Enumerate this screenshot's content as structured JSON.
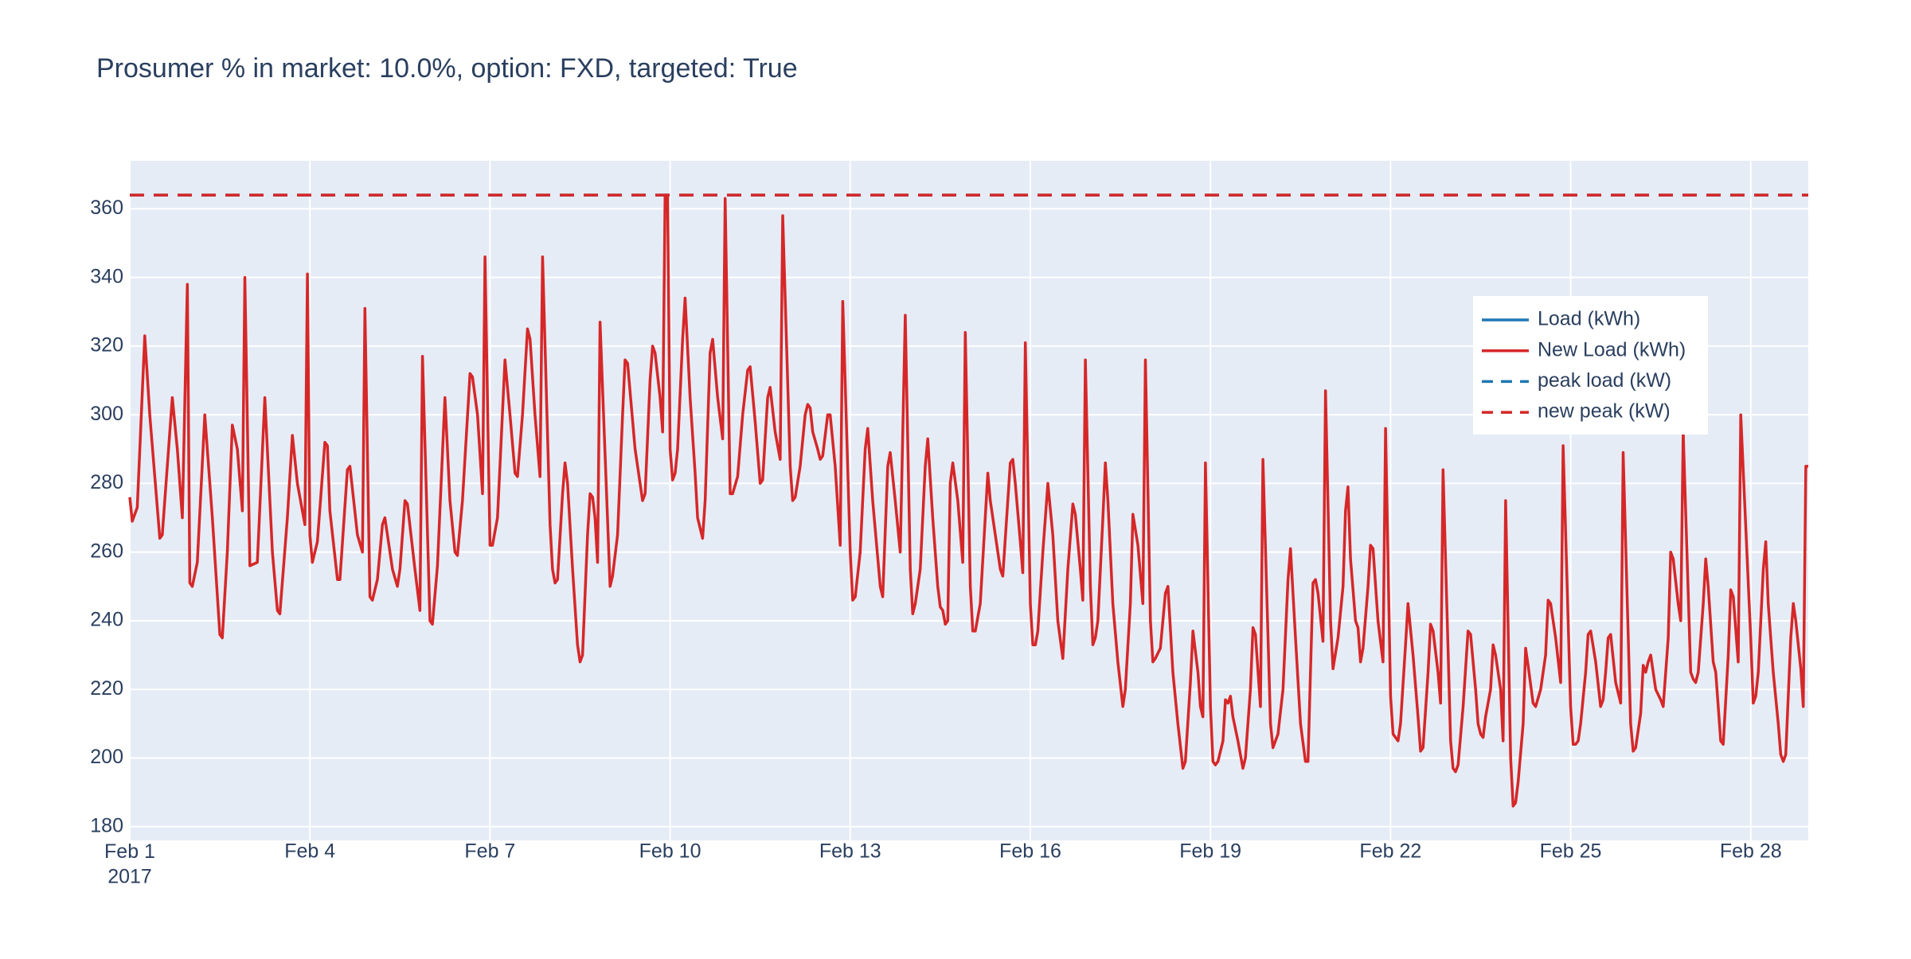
{
  "chart_data": {
    "type": "line",
    "title": "Prosumer % in market: 10.0%, option: FXD, targeted: True",
    "xlim": [
      "2017-02-01T00:00",
      "2017-02-28T23:00"
    ],
    "xticks": [
      {
        "value": "2017-02-01",
        "label": "Feb 1\n2017"
      },
      {
        "value": "2017-02-04",
        "label": "Feb 4"
      },
      {
        "value": "2017-02-07",
        "label": "Feb 7"
      },
      {
        "value": "2017-02-10",
        "label": "Feb 10"
      },
      {
        "value": "2017-02-13",
        "label": "Feb 13"
      },
      {
        "value": "2017-02-16",
        "label": "Feb 16"
      },
      {
        "value": "2017-02-19",
        "label": "Feb 19"
      },
      {
        "value": "2017-02-22",
        "label": "Feb 22"
      },
      {
        "value": "2017-02-25",
        "label": "Feb 25"
      },
      {
        "value": "2017-02-28",
        "label": "Feb 28"
      }
    ],
    "ylim": [
      176,
      374
    ],
    "yticks": [
      180,
      200,
      220,
      240,
      260,
      280,
      300,
      320,
      340,
      360
    ],
    "grid": true,
    "legend": "upper right",
    "x": [
      "2017-02-01T00:00",
      "2017-02-01T01:00",
      "2017-02-01T03:00",
      "2017-02-01T06:00",
      "2017-02-01T08:00",
      "2017-02-01T12:00",
      "2017-02-01T13:00",
      "2017-02-01T17:00",
      "2017-02-01T19:00",
      "2017-02-01T21:00",
      "2017-02-01T23:00",
      "2017-02-02T00:00",
      "2017-02-02T01:00",
      "2017-02-02T03:00",
      "2017-02-02T06:00",
      "2017-02-02T09:00",
      "2017-02-02T12:00",
      "2017-02-02T13:00",
      "2017-02-02T15:00",
      "2017-02-02T17:00",
      "2017-02-02T19:00",
      "2017-02-02T21:00",
      "2017-02-02T22:00",
      "2017-02-03T00:00",
      "2017-02-03T03:00",
      "2017-02-03T06:00",
      "2017-02-03T09:00",
      "2017-02-03T11:00",
      "2017-02-03T12:00",
      "2017-02-03T15:00",
      "2017-02-03T17:00",
      "2017-02-03T19:00",
      "2017-02-03T22:00",
      "2017-02-03T23:00",
      "2017-02-04T00:00",
      "2017-02-04T01:00",
      "2017-02-04T03:00",
      "2017-02-04T06:00",
      "2017-02-04T07:00",
      "2017-02-04T08:00",
      "2017-02-04T11:00",
      "2017-02-04T12:00",
      "2017-02-04T15:00",
      "2017-02-04T16:00",
      "2017-02-04T19:00",
      "2017-02-04T21:00",
      "2017-02-04T22:00",
      "2017-02-05T00:00",
      "2017-02-05T01:00",
      "2017-02-05T03:00",
      "2017-02-05T05:00",
      "2017-02-05T06:00",
      "2017-02-05T09:00",
      "2017-02-05T11:00",
      "2017-02-05T12:00",
      "2017-02-05T14:00",
      "2017-02-05T15:00",
      "2017-02-05T18:00",
      "2017-02-05T20:00",
      "2017-02-05T21:00",
      "2017-02-06T00:00",
      "2017-02-06T01:00",
      "2017-02-06T03:00",
      "2017-02-06T06:00",
      "2017-02-06T08:00",
      "2017-02-06T10:00",
      "2017-02-06T11:00",
      "2017-02-06T13:00",
      "2017-02-06T16:00",
      "2017-02-06T17:00",
      "2017-02-06T19:00",
      "2017-02-06T21:00",
      "2017-02-06T22:00",
      "2017-02-07T00:00",
      "2017-02-07T01:00",
      "2017-02-07T03:00",
      "2017-02-07T06:00",
      "2017-02-07T08:00",
      "2017-02-07T10:00",
      "2017-02-07T11:00",
      "2017-02-07T13:00",
      "2017-02-07T15:00",
      "2017-02-07T16:00",
      "2017-02-07T18:00",
      "2017-02-07T20:00",
      "2017-02-07T21:00",
      "2017-02-08T00:00",
      "2017-02-08T01:00",
      "2017-02-08T02:00",
      "2017-02-08T03:00",
      "2017-02-08T05:00",
      "2017-02-08T06:00",
      "2017-02-08T07:00",
      "2017-02-08T09:00",
      "2017-02-08T11:00",
      "2017-02-08T12:00",
      "2017-02-08T13:00",
      "2017-02-08T15:00",
      "2017-02-08T16:00",
      "2017-02-08T17:00",
      "2017-02-08T18:00",
      "2017-02-08T19:00",
      "2017-02-08T20:00",
      "2017-02-09T00:00",
      "2017-02-09T01:00",
      "2017-02-09T03:00",
      "2017-02-09T05:00",
      "2017-02-09T06:00",
      "2017-02-09T07:00",
      "2017-02-09T10:00",
      "2017-02-09T13:00",
      "2017-02-09T14:00",
      "2017-02-09T16:00",
      "2017-02-09T17:00",
      "2017-02-09T18:00",
      "2017-02-09T20:00",
      "2017-02-09T21:00",
      "2017-02-09T22:00",
      "2017-02-09T23:00",
      "2017-02-10T00:00",
      "2017-02-10T01:00",
      "2017-02-10T02:00",
      "2017-02-10T03:00",
      "2017-02-10T05:00",
      "2017-02-10T06:00",
      "2017-02-10T08:00",
      "2017-02-10T10:00",
      "2017-02-10T11:00",
      "2017-02-10T13:00",
      "2017-02-10T14:00",
      "2017-02-10T16:00",
      "2017-02-10T17:00",
      "2017-02-10T19:00",
      "2017-02-10T21:00",
      "2017-02-10T22:00",
      "2017-02-11T00:00",
      "2017-02-11T01:00",
      "2017-02-11T03:00",
      "2017-02-11T05:00",
      "2017-02-11T07:00",
      "2017-02-11T08:00",
      "2017-02-11T10:00",
      "2017-02-11T12:00",
      "2017-02-11T13:00",
      "2017-02-11T15:00",
      "2017-02-11T16:00",
      "2017-02-11T18:00",
      "2017-02-11T20:00",
      "2017-02-11T21:00",
      "2017-02-12T00:00",
      "2017-02-12T01:00",
      "2017-02-12T02:00",
      "2017-02-12T04:00",
      "2017-02-12T06:00",
      "2017-02-12T07:00",
      "2017-02-12T08:00",
      "2017-02-12T09:00",
      "2017-02-12T11:00",
      "2017-02-12T12:00",
      "2017-02-12T13:00",
      "2017-02-12T15:00",
      "2017-02-12T16:00",
      "2017-02-12T18:00",
      "2017-02-12T20:00",
      "2017-02-12T21:00",
      "2017-02-13T00:00",
      "2017-02-13T01:00",
      "2017-02-13T02:00",
      "2017-02-13T04:00",
      "2017-02-13T06:00",
      "2017-02-13T07:00",
      "2017-02-13T09:00",
      "2017-02-13T12:00",
      "2017-02-13T13:00",
      "2017-02-13T15:00",
      "2017-02-13T16:00",
      "2017-02-13T18:00",
      "2017-02-13T20:00",
      "2017-02-13T22:00",
      "2017-02-14T00:00",
      "2017-02-14T01:00",
      "2017-02-14T02:00",
      "2017-02-14T04:00",
      "2017-02-14T06:00",
      "2017-02-14T07:00",
      "2017-02-14T09:00",
      "2017-02-14T11:00",
      "2017-02-14T12:00",
      "2017-02-14T13:00",
      "2017-02-14T14:00",
      "2017-02-14T15:00",
      "2017-02-14T16:00",
      "2017-02-14T17:00",
      "2017-02-14T19:00",
      "2017-02-14T21:00",
      "2017-02-14T22:00",
      "2017-02-15T00:00",
      "2017-02-15T01:00",
      "2017-02-15T02:00",
      "2017-02-15T04:00",
      "2017-02-15T07:00",
      "2017-02-15T08:00",
      "2017-02-15T12:00",
      "2017-02-15T13:00",
      "2017-02-15T15:00",
      "2017-02-15T16:00",
      "2017-02-15T17:00",
      "2017-02-15T18:00",
      "2017-02-15T20:00",
      "2017-02-15T21:00",
      "2017-02-15T22:00",
      "2017-02-16T00:00",
      "2017-02-16T01:00",
      "2017-02-16T02:00",
      "2017-02-16T03:00",
      "2017-02-16T05:00",
      "2017-02-16T07:00",
      "2017-02-16T09:00",
      "2017-02-16T11:00",
      "2017-02-16T13:00",
      "2017-02-16T15:00",
      "2017-02-16T17:00",
      "2017-02-16T18:00",
      "2017-02-16T20:00",
      "2017-02-16T21:00",
      "2017-02-16T22:00",
      "2017-02-17T00:00",
      "2017-02-17T01:00",
      "2017-02-17T02:00",
      "2017-02-17T03:00",
      "2017-02-17T05:00",
      "2017-02-17T06:00",
      "2017-02-17T07:00",
      "2017-02-17T09:00",
      "2017-02-17T11:00",
      "2017-02-17T13:00",
      "2017-02-17T14:00",
      "2017-02-17T16:00",
      "2017-02-17T17:00",
      "2017-02-17T19:00",
      "2017-02-17T21:00",
      "2017-02-17T22:00",
      "2017-02-18T00:00",
      "2017-02-18T01:00",
      "2017-02-18T02:00",
      "2017-02-18T04:00",
      "2017-02-18T06:00",
      "2017-02-18T07:00",
      "2017-02-18T09:00",
      "2017-02-18T11:00",
      "2017-02-18T13:00",
      "2017-02-18T14:00",
      "2017-02-18T16:00",
      "2017-02-18T17:00",
      "2017-02-18T19:00",
      "2017-02-18T20:00",
      "2017-02-18T21:00",
      "2017-02-18T22:00",
      "2017-02-19T00:00",
      "2017-02-19T01:00",
      "2017-02-19T02:00",
      "2017-02-19T03:00",
      "2017-02-19T05:00",
      "2017-02-19T06:00",
      "2017-02-19T07:00",
      "2017-02-19T08:00",
      "2017-02-19T09:00",
      "2017-02-19T11:00",
      "2017-02-19T13:00",
      "2017-02-19T14:00",
      "2017-02-19T16:00",
      "2017-02-19T17:00",
      "2017-02-19T18:00",
      "2017-02-19T20:00",
      "2017-02-19T21:00",
      "2017-02-20T00:00",
      "2017-02-20T01:00",
      "2017-02-20T03:00",
      "2017-02-20T05:00",
      "2017-02-20T07:00",
      "2017-02-20T08:00",
      "2017-02-20T10:00",
      "2017-02-20T12:00",
      "2017-02-20T14:00",
      "2017-02-20T15:00",
      "2017-02-20T16:00",
      "2017-02-20T17:00",
      "2017-02-20T18:00",
      "2017-02-20T19:00",
      "2017-02-20T21:00",
      "2017-02-20T22:00",
      "2017-02-21T00:00",
      "2017-02-21T01:00",
      "2017-02-21T03:00",
      "2017-02-21T05:00",
      "2017-02-21T06:00",
      "2017-02-21T07:00",
      "2017-02-21T08:00",
      "2017-02-21T10:00",
      "2017-02-21T11:00",
      "2017-02-21T12:00",
      "2017-02-21T13:00",
      "2017-02-21T15:00",
      "2017-02-21T16:00",
      "2017-02-21T17:00",
      "2017-02-21T19:00",
      "2017-02-21T21:00",
      "2017-02-21T22:00",
      "2017-02-22T00:00",
      "2017-02-22T01:00",
      "2017-02-22T02:00",
      "2017-02-22T03:00",
      "2017-02-22T04:00",
      "2017-02-22T06:00",
      "2017-02-22T07:00",
      "2017-02-22T09:00",
      "2017-02-22T11:00",
      "2017-02-22T12:00",
      "2017-02-22T13:00",
      "2017-02-22T15:00",
      "2017-02-22T16:00",
      "2017-02-22T17:00",
      "2017-02-22T19:00",
      "2017-02-22T20:00",
      "2017-02-22T21:00",
      "2017-02-23T00:00",
      "2017-02-23T01:00",
      "2017-02-23T02:00",
      "2017-02-23T03:00",
      "2017-02-23T05:00",
      "2017-02-23T07:00",
      "2017-02-23T08:00",
      "2017-02-23T10:00",
      "2017-02-23T11:00",
      "2017-02-23T12:00",
      "2017-02-23T13:00",
      "2017-02-23T14:00",
      "2017-02-23T16:00",
      "2017-02-23T17:00",
      "2017-02-23T18:00",
      "2017-02-23T20:00",
      "2017-02-23T21:00",
      "2017-02-23T22:00",
      "2017-02-24T00:00",
      "2017-02-24T01:00",
      "2017-02-24T02:00",
      "2017-02-24T03:00",
      "2017-02-24T05:00",
      "2017-02-24T06:00",
      "2017-02-24T07:00",
      "2017-02-24T09:00",
      "2017-02-24T10:00",
      "2017-02-24T12:00",
      "2017-02-24T14:00",
      "2017-02-24T15:00",
      "2017-02-24T16:00",
      "2017-02-24T18:00",
      "2017-02-24T20:00",
      "2017-02-24T21:00",
      "2017-02-25T00:00",
      "2017-02-25T01:00",
      "2017-02-25T02:00",
      "2017-02-25T03:00",
      "2017-02-25T04:00",
      "2017-02-25T06:00",
      "2017-02-25T07:00",
      "2017-02-25T08:00",
      "2017-02-25T10:00",
      "2017-02-25T12:00",
      "2017-02-25T13:00",
      "2017-02-25T14:00",
      "2017-02-25T15:00",
      "2017-02-25T16:00",
      "2017-02-25T18:00",
      "2017-02-25T20:00",
      "2017-02-25T21:00",
      "2017-02-26T00:00",
      "2017-02-26T01:00",
      "2017-02-26T02:00",
      "2017-02-26T04:00",
      "2017-02-26T05:00",
      "2017-02-26T06:00",
      "2017-02-26T07:00",
      "2017-02-26T08:00",
      "2017-02-26T10:00",
      "2017-02-26T12:00",
      "2017-02-26T13:00",
      "2017-02-26T15:00",
      "2017-02-26T16:00",
      "2017-02-26T17:00",
      "2017-02-26T19:00",
      "2017-02-26T20:00",
      "2017-02-26T21:00",
      "2017-02-27T00:00",
      "2017-02-27T01:00",
      "2017-02-27T02:00",
      "2017-02-27T03:00",
      "2017-02-27T05:00",
      "2017-02-27T06:00",
      "2017-02-27T07:00",
      "2017-02-27T09:00",
      "2017-02-27T10:00",
      "2017-02-27T11:00",
      "2017-02-27T12:00",
      "2017-02-27T13:00",
      "2017-02-27T15:00",
      "2017-02-27T16:00",
      "2017-02-27T17:00",
      "2017-02-27T19:00",
      "2017-02-27T20:00",
      "2017-02-28T00:00",
      "2017-02-28T01:00",
      "2017-02-28T02:00",
      "2017-02-28T03:00",
      "2017-02-28T05:00",
      "2017-02-28T06:00",
      "2017-02-28T07:00",
      "2017-02-28T09:00",
      "2017-02-28T11:00",
      "2017-02-28T12:00",
      "2017-02-28T13:00",
      "2017-02-28T14:00",
      "2017-02-28T16:00",
      "2017-02-28T17:00",
      "2017-02-28T18:00",
      "2017-02-28T20:00",
      "2017-02-28T21:00",
      "2017-02-28T22:00",
      "2017-02-28T23:00"
    ],
    "series": [
      {
        "name": "Load (kWh)",
        "color": "#1f77b4"
      },
      {
        "name": "New Load (kWh)",
        "color": "#d62728",
        "values": [
          276,
          269,
          273,
          323,
          300,
          264,
          265,
          305,
          290,
          270,
          338,
          251,
          250,
          257,
          300,
          270,
          236,
          235,
          260,
          297,
          290,
          272,
          340,
          256,
          257,
          305,
          260,
          243,
          242,
          270,
          294,
          280,
          268,
          341,
          265,
          257,
          263,
          292,
          291,
          272,
          252,
          252,
          284,
          285,
          265,
          260,
          331,
          247,
          246,
          252,
          268,
          270,
          255,
          250,
          255,
          275,
          274,
          255,
          243,
          317,
          240,
          239,
          256,
          305,
          275,
          260,
          259,
          275,
          312,
          311,
          300,
          277,
          346,
          262,
          262,
          270,
          316,
          300,
          283,
          282,
          300,
          325,
          322,
          300,
          282,
          346,
          268,
          255,
          251,
          252,
          277,
          286,
          280,
          255,
          233,
          228,
          230,
          265,
          277,
          276,
          270,
          257,
          327,
          250,
          253,
          265,
          300,
          316,
          315,
          290,
          275,
          277,
          310,
          320,
          318,
          305,
          295,
          364,
          364,
          290,
          281,
          283,
          290,
          322,
          334,
          305,
          283,
          270,
          264,
          275,
          318,
          322,
          305,
          293,
          363,
          277,
          277,
          282,
          300,
          313,
          314,
          298,
          280,
          281,
          305,
          308,
          295,
          287,
          358,
          285,
          275,
          276,
          285,
          300,
          303,
          302,
          295,
          290,
          287,
          288,
          300,
          300,
          285,
          262,
          333,
          260,
          246,
          247,
          260,
          290,
          296,
          275,
          250,
          247,
          285,
          289,
          275,
          260,
          329,
          255,
          242,
          245,
          255,
          285,
          293,
          270,
          250,
          244,
          243,
          239,
          240,
          280,
          286,
          275,
          257,
          324,
          250,
          237,
          237,
          245,
          283,
          275,
          255,
          253,
          275,
          286,
          287,
          280,
          263,
          254,
          321,
          245,
          233,
          233,
          237,
          260,
          280,
          265,
          240,
          229,
          255,
          274,
          271,
          255,
          246,
          316,
          250,
          233,
          235,
          240,
          270,
          286,
          275,
          245,
          228,
          215,
          220,
          245,
          271,
          262,
          245,
          316,
          240,
          228,
          229,
          232,
          248,
          250,
          225,
          210,
          197,
          199,
          222,
          237,
          225,
          215,
          212,
          286,
          215,
          199,
          198,
          199,
          205,
          217,
          216,
          218,
          212,
          205,
          197,
          200,
          220,
          238,
          236,
          215,
          287,
          210,
          203,
          207,
          220,
          252,
          261,
          235,
          210,
          199,
          199,
          225,
          251,
          252,
          248,
          234,
          307,
          240,
          226,
          235,
          250,
          272,
          279,
          258,
          240,
          238,
          228,
          232,
          250,
          262,
          261,
          240,
          228,
          296,
          218,
          207,
          206,
          205,
          210,
          233,
          245,
          230,
          212,
          202,
          203,
          225,
          239,
          237,
          225,
          216,
          284,
          205,
          197,
          196,
          198,
          215,
          237,
          236,
          220,
          210,
          207,
          206,
          212,
          220,
          233,
          230,
          220,
          205,
          275,
          200,
          186,
          187,
          193,
          210,
          232,
          227,
          216,
          215,
          220,
          230,
          246,
          245,
          235,
          222,
          291,
          215,
          204,
          204,
          205,
          210,
          225,
          236,
          237,
          228,
          215,
          217,
          225,
          235,
          236,
          222,
          216,
          289,
          210,
          202,
          203,
          213,
          227,
          225,
          228,
          230,
          220,
          217,
          215,
          235,
          260,
          258,
          245,
          240,
          295,
          225,
          223,
          222,
          225,
          245,
          258,
          250,
          228,
          225,
          215,
          205,
          204,
          230,
          249,
          247,
          228,
          300,
          235,
          216,
          218,
          225,
          255,
          263,
          245,
          225,
          210,
          201,
          199,
          201,
          235,
          245,
          240,
          226,
          215,
          285,
          285
        ]
      },
      {
        "name": "peak load (kW)",
        "color": "#1f77b4",
        "dash": true,
        "value": 364
      },
      {
        "name": "new peak (kW)",
        "color": "#d62728",
        "dash": true,
        "value": 364
      }
    ]
  }
}
